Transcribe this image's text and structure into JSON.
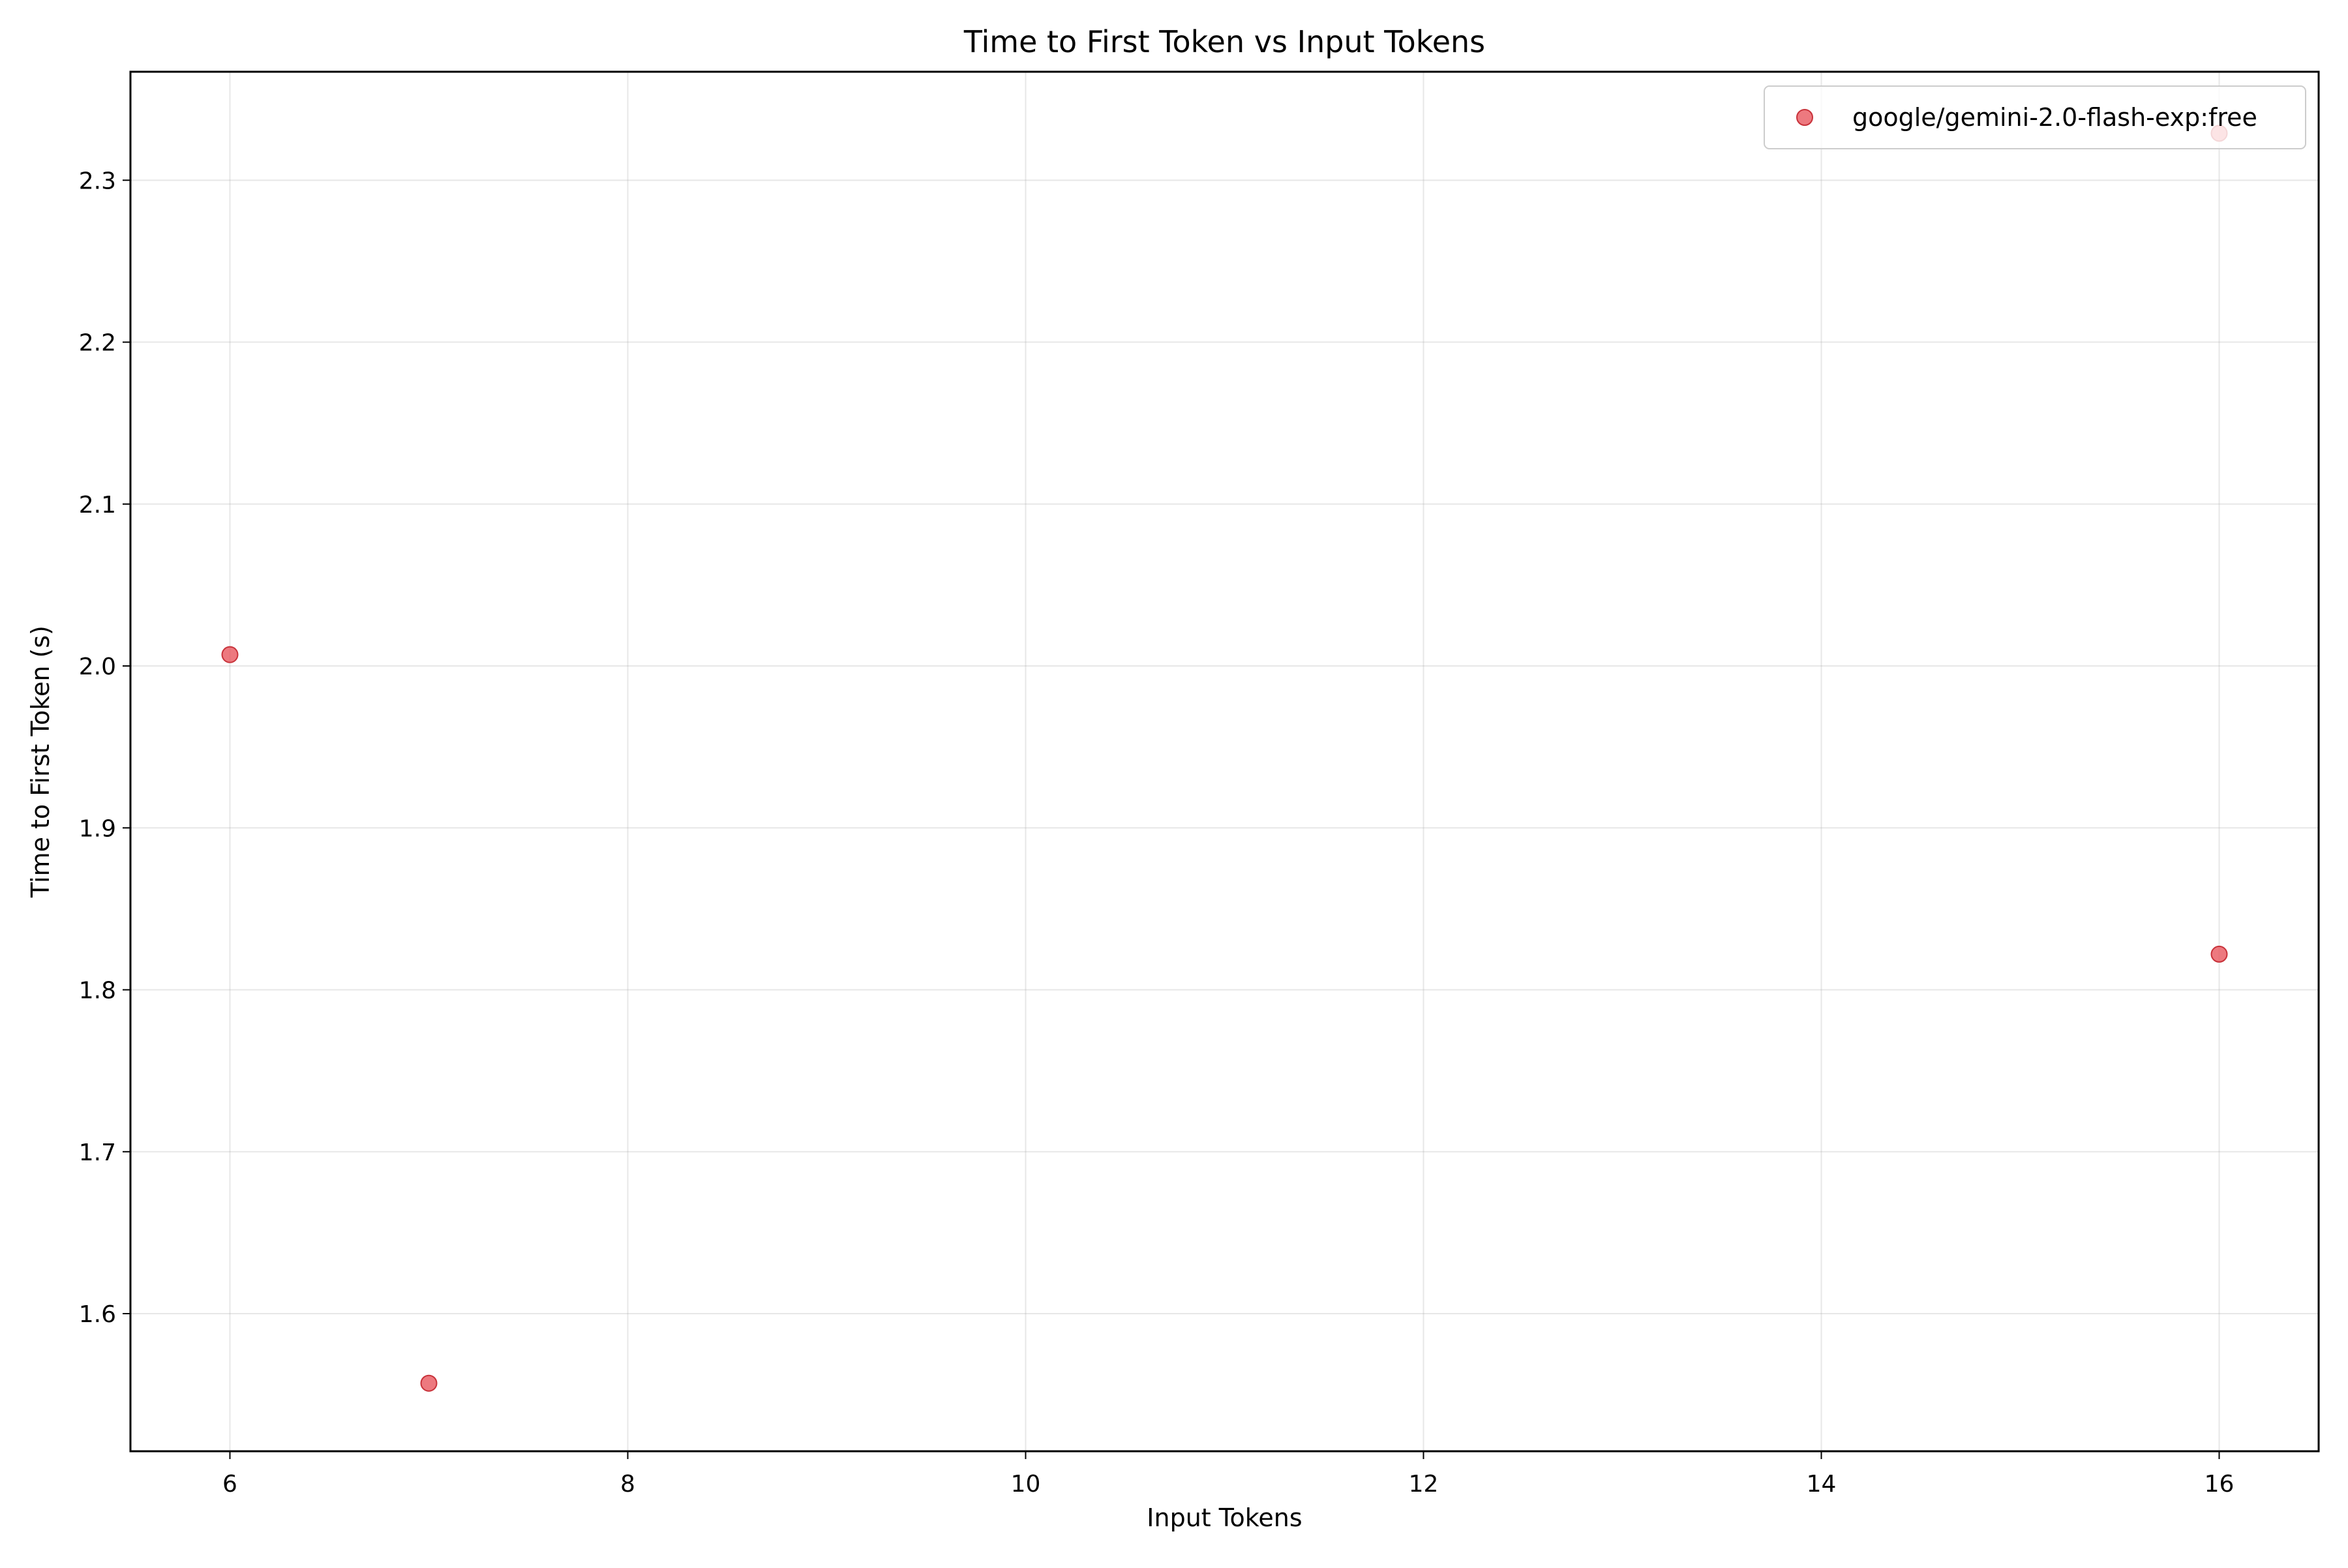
{
  "chart_data": {
    "type": "scatter",
    "title": "Time to First Token vs Input Tokens",
    "xlabel": "Input Tokens",
    "ylabel": "Time to First Token (s)",
    "xlim": [
      5.5,
      16.5
    ],
    "ylim": [
      1.515,
      2.367
    ],
    "xticks": [
      6,
      8,
      10,
      12,
      14,
      16
    ],
    "xtick_labels": [
      "6",
      "8",
      "10",
      "12",
      "14",
      "16"
    ],
    "yticks": [
      1.6,
      1.7,
      1.8,
      1.9,
      2.0,
      2.1,
      2.2,
      2.3
    ],
    "ytick_labels": [
      "1.6",
      "1.7",
      "1.8",
      "1.9",
      "2.0",
      "2.1",
      "2.2",
      "2.3"
    ],
    "grid": true,
    "legend_position": "top-right",
    "series": [
      {
        "name": "google/gemini-2.0-flash-exp:free",
        "color": "#e8585f",
        "points": [
          {
            "x": 6,
            "y": 2.007
          },
          {
            "x": 7,
            "y": 1.557
          },
          {
            "x": 16,
            "y": 2.329
          },
          {
            "x": 16,
            "y": 1.822
          }
        ]
      }
    ]
  }
}
